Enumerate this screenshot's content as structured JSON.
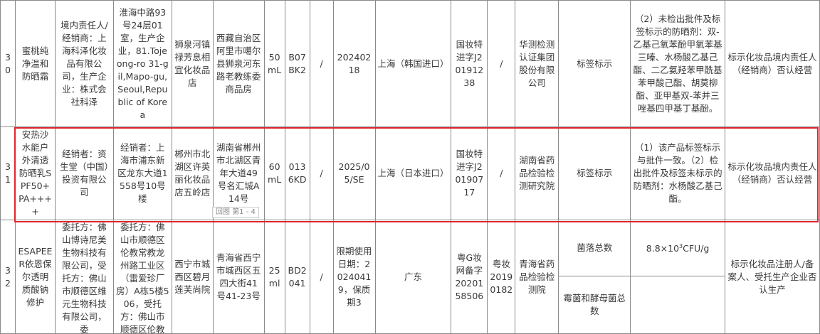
{
  "rows": [
    {
      "cells": [
        "30",
        "蜜桃纯净温和防晒霜",
        "境内责任人/经销商：上海科泽化妆品有限公司，生产企业：株式会社科泽",
        "淮海中路93号24层01室，生产企业，81.Tojeong-ro 31-gil,Mapo-gu,Seoul,Republic of Korea",
        "狮泉河镇禄芳息相宜化妆品店",
        "西藏自治区阿里市噶尔县狮泉河东路老教练委商品房",
        "50 mL",
        "B07BK2",
        "/",
        "20240218",
        "上海（韩国进口）",
        "国妆特进字J20191238",
        "/",
        "华测检测认证集团股份有限公司",
        "标签标示",
        "（2）未检出批件及标签标示的防晒剂：双-乙基己氧苯酚甲氧苯基三嗪、水杨酸乙基己酯、二乙氨羟苯甲酰基苯甲酸己酯、胡莫柳酯、亚甲基双-苯并三唑基四甲基丁基酚。",
        "标示化妆品境内责任人（经销商）否认经营"
      ]
    },
    {
      "cells": [
        "31",
        "安热沙水能户外清透防晒乳SPF50+ PA++++",
        "经销者：资生堂（中国）投资有限公司",
        "经销者：上海市浦东新区龙东大道1558号10号楼",
        "郴州市北湖区许英丽化妆品店五岭店",
        "湖南省郴州市北湖区青年大道49号名汇城A14号",
        "60 mL",
        "0136KD",
        "/",
        "2025/05/SE",
        "上海（日本进口）",
        "国妆特进字J20190717",
        "/",
        "湖南省药品检验检测研究院",
        "标签标示",
        "（1）该产品标签标示与批件一致。（2）检出批件及标签未标示的防晒剂：水杨酸乙基己酯。",
        "标示化妆品境内责任人（经销商）否认经营"
      ],
      "highlighted": true
    },
    {
      "cells": [
        "32",
        "ESAPEER依恩保尔透明质酸钠修护",
        "委托方：佛山博诗尼美生物科技有限公司，受托方：佛山市顺德区维元生物科技有限公司，委",
        "委托方：佛山市顺德区伦教常教龙州路工业区（雷爱珍厂房）A栋5楼506，受托方：佛山市顺德区伦教",
        "西宁市城西区碧月莲芙尚院",
        "青海省西宁市城西区五四大街41号41-23号",
        "25 ml",
        "BD2041",
        "/",
        "限期使用日期：20240419，保质期3",
        "广东",
        "粤G妆网备字2020158506",
        "粤妆20190182",
        "青海省药品检验检测院",
        "标示化妆品注册人/备案人、受托生产企业否认生产"
      ],
      "sub_rows": [
        {
          "item": "菌落总数",
          "result": "8.8×10",
          "exp": "3",
          "unit": "CFU/g"
        },
        {
          "item": "霉菌和酵母菌总数",
          "result": "",
          "exp": "",
          "unit": ""
        }
      ]
    }
  ],
  "page_indicator": "回图 第1 - 4",
  "colors": {
    "highlight": "#e0262b",
    "border": "#8a8a8a",
    "text": "#3a3a3a"
  }
}
